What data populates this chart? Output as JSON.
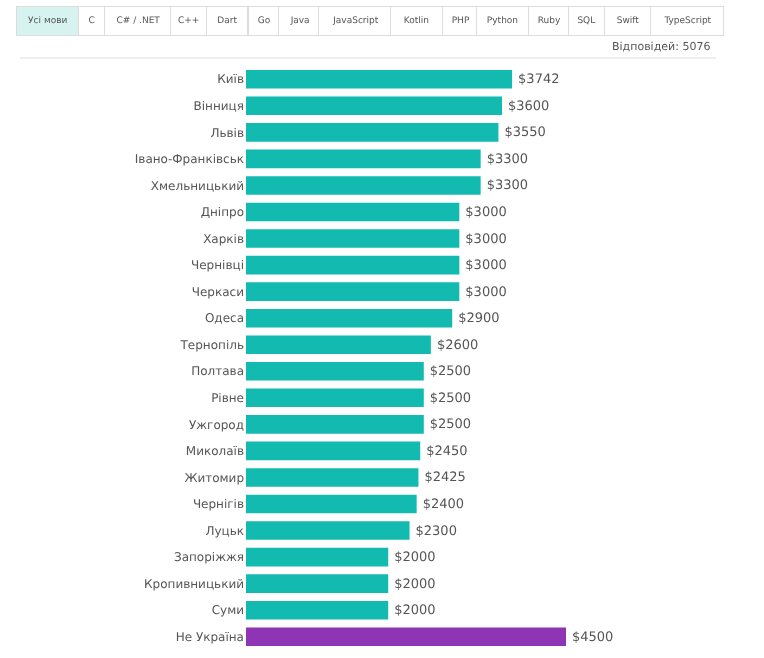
{
  "chart_data": {
    "type": "bar",
    "orientation": "horizontal",
    "categories": [
      "Київ",
      "Вінниця",
      "Львів",
      "Івано-Франківськ",
      "Хмельницький",
      "Дніпро",
      "Харків",
      "Чернівці",
      "Черкаси",
      "Одеса",
      "Тернопіль",
      "Полтава",
      "Рівне",
      "Ужгород",
      "Миколаїв",
      "Житомир",
      "Чернігів",
      "Луцьк",
      "Запоріжжя",
      "Кропивницький",
      "Суми",
      "Не Україна"
    ],
    "values": [
      3742,
      3600,
      3550,
      3300,
      3300,
      3000,
      3000,
      3000,
      3000,
      2900,
      2600,
      2500,
      2500,
      2500,
      2450,
      2425,
      2400,
      2300,
      2000,
      2000,
      2000,
      4500
    ],
    "value_labels": [
      "$3742",
      "$3600",
      "$3550",
      "$3300",
      "$3300",
      "$3000",
      "$3000",
      "$3000",
      "$3000",
      "$2900",
      "$2600",
      "$2500",
      "$2500",
      "$2500",
      "$2450",
      "$2425",
      "$2400",
      "$2300",
      "$2000",
      "$2000",
      "$2000",
      "$4500"
    ],
    "colors": [
      "#12bab0",
      "#12bab0",
      "#12bab0",
      "#12bab0",
      "#12bab0",
      "#12bab0",
      "#12bab0",
      "#12bab0",
      "#12bab0",
      "#12bab0",
      "#12bab0",
      "#12bab0",
      "#12bab0",
      "#12bab0",
      "#12bab0",
      "#12bab0",
      "#12bab0",
      "#12bab0",
      "#12bab0",
      "#12bab0",
      "#12bab0",
      "#8e35b5"
    ],
    "annotations": [
      "Усі мови",
      "C",
      "C# / .NET",
      "C++",
      "Dart",
      "Go",
      "Java",
      "JavaScript",
      "Kotlin",
      "PHP",
      "Python",
      "Ruby",
      "SQL",
      "Swift",
      "TypeScript",
      "Відповідей: 5076"
    ],
    "legend": false
  }
}
